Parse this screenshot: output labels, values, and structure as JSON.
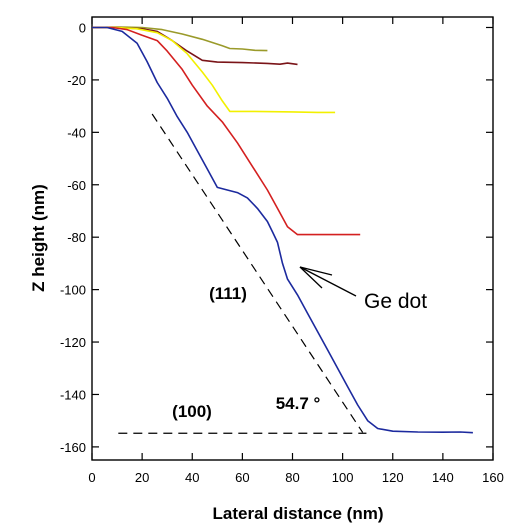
{
  "chart_data": {
    "type": "line",
    "title": "",
    "xlabel": "Lateral distance (nm)",
    "ylabel": "Z height (nm)",
    "xlim": [
      0,
      160
    ],
    "ylim": [
      -165,
      4
    ],
    "xticks": [
      0,
      20,
      40,
      60,
      80,
      100,
      120,
      140,
      160
    ],
    "yticks": [
      0,
      -20,
      -40,
      -60,
      -80,
      -100,
      -120,
      -140,
      -160
    ],
    "grid": false,
    "legend": "none",
    "series": [
      {
        "color": "#9a9a2a",
        "points": [
          [
            0,
            0
          ],
          [
            10,
            0.2
          ],
          [
            20,
            0
          ],
          [
            28,
            -0.8
          ],
          [
            36,
            -2.5
          ],
          [
            44,
            -4.5
          ],
          [
            52,
            -7
          ],
          [
            55,
            -8
          ],
          [
            60,
            -8.2
          ],
          [
            65,
            -8.7
          ],
          [
            70,
            -8.8
          ]
        ]
      },
      {
        "color": "#7a1418",
        "points": [
          [
            0,
            0
          ],
          [
            10,
            0
          ],
          [
            20,
            -0.5
          ],
          [
            26,
            -1.5
          ],
          [
            32,
            -5
          ],
          [
            38,
            -9
          ],
          [
            44,
            -12.5
          ],
          [
            50,
            -13.2
          ],
          [
            60,
            -13.4
          ],
          [
            70,
            -13.7
          ],
          [
            75,
            -14
          ],
          [
            78,
            -13.6
          ],
          [
            82,
            -14.1
          ]
        ]
      },
      {
        "color": "#f2f000",
        "points": [
          [
            0,
            0
          ],
          [
            10,
            0
          ],
          [
            18,
            -0.5
          ],
          [
            26,
            -2
          ],
          [
            32,
            -5
          ],
          [
            38,
            -10
          ],
          [
            44,
            -17
          ],
          [
            48,
            -22
          ],
          [
            52,
            -28
          ],
          [
            55,
            -32
          ],
          [
            65,
            -32
          ],
          [
            80,
            -32.2
          ],
          [
            90,
            -32.4
          ],
          [
            97,
            -32.4
          ]
        ]
      },
      {
        "color": "#d42020",
        "points": [
          [
            0,
            0
          ],
          [
            8,
            0
          ],
          [
            14,
            -0.8
          ],
          [
            20,
            -3
          ],
          [
            26,
            -5
          ],
          [
            30,
            -9
          ],
          [
            36,
            -16
          ],
          [
            40,
            -22
          ],
          [
            46,
            -30
          ],
          [
            52,
            -36
          ],
          [
            58,
            -44
          ],
          [
            64,
            -53
          ],
          [
            70,
            -62
          ],
          [
            74,
            -69
          ],
          [
            78,
            -76
          ],
          [
            82,
            -79
          ],
          [
            90,
            -79
          ],
          [
            100,
            -79
          ],
          [
            107,
            -79
          ]
        ]
      },
      {
        "color": "#1c2a9e",
        "points": [
          [
            0,
            0
          ],
          [
            6,
            0
          ],
          [
            12,
            -1.5
          ],
          [
            18,
            -6
          ],
          [
            22,
            -13
          ],
          [
            26,
            -21
          ],
          [
            30,
            -27
          ],
          [
            34,
            -34
          ],
          [
            38,
            -40
          ],
          [
            42,
            -47
          ],
          [
            46,
            -54
          ],
          [
            50,
            -61
          ],
          [
            54,
            -62
          ],
          [
            58,
            -63
          ],
          [
            62,
            -65
          ],
          [
            66,
            -69
          ],
          [
            70,
            -74
          ],
          [
            72,
            -78
          ],
          [
            74,
            -82
          ],
          [
            76,
            -90
          ],
          [
            78,
            -96
          ],
          [
            82,
            -102
          ],
          [
            86,
            -109
          ],
          [
            90,
            -116
          ],
          [
            94,
            -123
          ],
          [
            98,
            -130
          ],
          [
            102,
            -137
          ],
          [
            106,
            -144
          ],
          [
            110,
            -150
          ],
          [
            114,
            -153
          ],
          [
            120,
            -154
          ],
          [
            130,
            -154.3
          ],
          [
            140,
            -154.4
          ],
          [
            147,
            -154.3
          ],
          [
            152,
            -154.6
          ]
        ]
      }
    ],
    "reference_lines": [
      {
        "style": "dashed",
        "points": [
          [
            10.5,
            -154.8
          ],
          [
            109.5,
            -154.8
          ]
        ]
      },
      {
        "style": "dashed",
        "points": [
          [
            24,
            -33
          ],
          [
            108,
            -154.5
          ]
        ]
      }
    ],
    "annotations": {
      "plane_111": "(111)",
      "plane_100": "(100)",
      "angle": "54.7 °",
      "ge_dot": "Ge dot"
    }
  }
}
